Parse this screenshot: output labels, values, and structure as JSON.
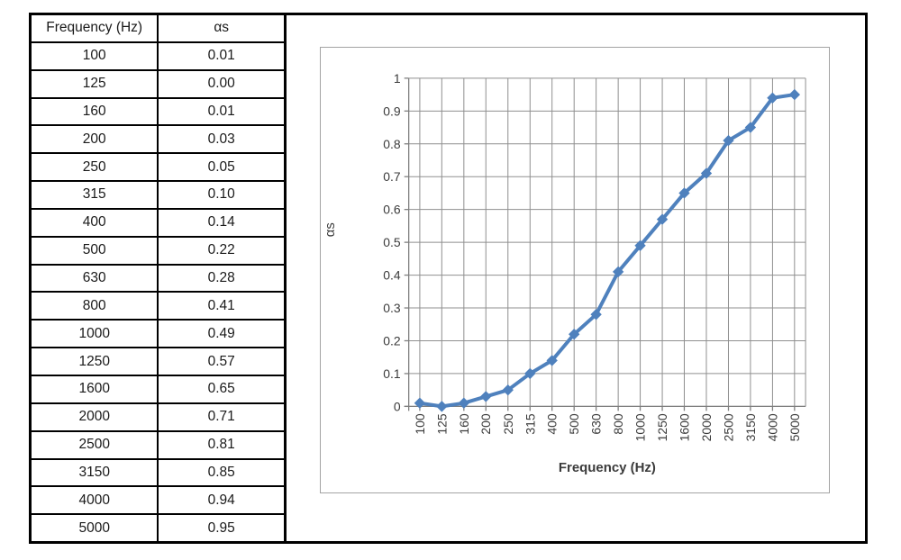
{
  "table": {
    "headers": [
      "Frequency (Hz)",
      "αs"
    ],
    "rows": [
      [
        "100",
        "0.01"
      ],
      [
        "125",
        "0.00"
      ],
      [
        "160",
        "0.01"
      ],
      [
        "200",
        "0.03"
      ],
      [
        "250",
        "0.05"
      ],
      [
        "315",
        "0.10"
      ],
      [
        "400",
        "0.14"
      ],
      [
        "500",
        "0.22"
      ],
      [
        "630",
        "0.28"
      ],
      [
        "800",
        "0.41"
      ],
      [
        "1000",
        "0.49"
      ],
      [
        "1250",
        "0.57"
      ],
      [
        "1600",
        "0.65"
      ],
      [
        "2000",
        "0.71"
      ],
      [
        "2500",
        "0.81"
      ],
      [
        "3150",
        "0.85"
      ],
      [
        "4000",
        "0.94"
      ],
      [
        "5000",
        "0.95"
      ]
    ]
  },
  "chart_data": {
    "type": "line",
    "title": "",
    "xlabel": "Frequency (Hz)",
    "ylabel": "αs",
    "categories": [
      "100",
      "125",
      "160",
      "200",
      "250",
      "315",
      "400",
      "500",
      "630",
      "800",
      "1000",
      "1250",
      "1600",
      "2000",
      "2500",
      "3150",
      "4000",
      "5000"
    ],
    "values": [
      0.01,
      0.0,
      0.01,
      0.03,
      0.05,
      0.1,
      0.14,
      0.22,
      0.28,
      0.41,
      0.49,
      0.57,
      0.65,
      0.71,
      0.81,
      0.85,
      0.94,
      0.95
    ],
    "ylim": [
      0,
      1
    ],
    "ytick_labels": [
      "0",
      "0.1",
      "0.2",
      "0.3",
      "0.4",
      "0.5",
      "0.6",
      "0.7",
      "0.8",
      "0.9",
      "1"
    ],
    "grid": "both",
    "legend": "none",
    "marker": "diamond",
    "x_tick_label_rotation": -90,
    "colors": {
      "series": "#4f81bd",
      "gridline": "#8f8f8f",
      "axis": "#7f7f7f",
      "text": "#3b3b3b",
      "chart_border": "#a3a3a3",
      "table_border": "#000000"
    }
  }
}
